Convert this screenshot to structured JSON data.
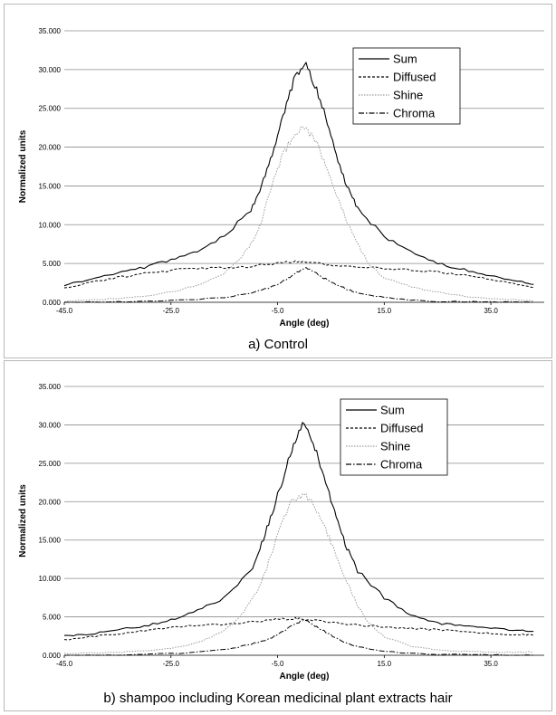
{
  "chart_data": [
    {
      "type": "line",
      "caption": "a) Control",
      "xlabel": "Angle (deg)",
      "ylabel": "Normalized units",
      "xlim": [
        -45,
        45
      ],
      "ylim": [
        0,
        35
      ],
      "x_ticks": [
        "-45.0",
        "-25.0",
        "-5.0",
        "15.0",
        "35.0"
      ],
      "y_ticks": [
        "0.000",
        "5.000",
        "10.000",
        "15.000",
        "20.000",
        "25.000",
        "30.000",
        "35.000"
      ],
      "grid": "horizontal",
      "legend_position": "top-right",
      "series": [
        {
          "name": "Sum",
          "style": "solid",
          "x": [
            -45,
            -40,
            -35,
            -30,
            -25,
            -20,
            -15,
            -10,
            -8,
            -6,
            -4,
            -2,
            0,
            2,
            4,
            6,
            8,
            10,
            15,
            20,
            25,
            30,
            35,
            40,
            43
          ],
          "y": [
            2.2,
            3.0,
            3.8,
            4.5,
            5.5,
            6.6,
            8.5,
            12.0,
            15.0,
            19.0,
            24.0,
            28.5,
            31.0,
            28.0,
            24.0,
            19.0,
            15.0,
            12.0,
            8.5,
            6.5,
            5.0,
            4.2,
            3.4,
            2.7,
            2.3
          ]
        },
        {
          "name": "Diffused",
          "style": "dashed",
          "x": [
            -45,
            -40,
            -35,
            -30,
            -25,
            -20,
            -15,
            -10,
            -6,
            -2,
            0,
            2,
            6,
            10,
            15,
            20,
            25,
            30,
            35,
            40,
            43
          ],
          "y": [
            1.8,
            2.6,
            3.2,
            3.7,
            4.1,
            4.4,
            4.5,
            4.6,
            5.0,
            5.3,
            5.2,
            5.0,
            4.7,
            4.5,
            4.4,
            4.2,
            3.9,
            3.5,
            3.0,
            2.3,
            1.9
          ]
        },
        {
          "name": "Shine",
          "style": "dotted",
          "x": [
            -45,
            -40,
            -35,
            -30,
            -25,
            -20,
            -15,
            -12,
            -10,
            -8,
            -6,
            -4,
            -2,
            0,
            2,
            4,
            6,
            8,
            10,
            12,
            15,
            20,
            25,
            30,
            35,
            40,
            43
          ],
          "y": [
            0.1,
            0.3,
            0.5,
            0.8,
            1.3,
            2.2,
            3.8,
            5.5,
            7.5,
            10.5,
            15.5,
            19.0,
            21.5,
            22.5,
            21.0,
            17.5,
            14.0,
            10.5,
            7.5,
            5.0,
            3.2,
            2.0,
            1.3,
            0.8,
            0.5,
            0.3,
            0.2
          ]
        },
        {
          "name": "Chroma",
          "style": "dashdot",
          "x": [
            -45,
            -35,
            -25,
            -15,
            -10,
            -6,
            -4,
            -2,
            0,
            2,
            4,
            6,
            8,
            10,
            15,
            20,
            25,
            35,
            43
          ],
          "y": [
            0.0,
            0.05,
            0.2,
            0.6,
            1.2,
            2.0,
            2.7,
            3.5,
            4.5,
            3.8,
            3.0,
            2.3,
            1.7,
            1.2,
            0.6,
            0.3,
            0.1,
            0.05,
            0.0
          ]
        }
      ]
    },
    {
      "type": "line",
      "caption": "b) shampoo including Korean medicinal plant extracts hair",
      "xlabel": "Angle (deg)",
      "ylabel": "Normalized units",
      "xlim": [
        -45,
        45
      ],
      "ylim": [
        0,
        35
      ],
      "x_ticks": [
        "-45.0",
        "-25.0",
        "-5.0",
        "15.0",
        "35.0"
      ],
      "y_ticks": [
        "0.000",
        "5.000",
        "10.000",
        "15.000",
        "20.000",
        "25.000",
        "30.000",
        "35.000"
      ],
      "grid": "horizontal",
      "legend_position": "top-right",
      "series": [
        {
          "name": "Sum",
          "style": "solid",
          "x": [
            -45,
            -40,
            -35,
            -30,
            -25,
            -20,
            -15,
            -10,
            -8,
            -6,
            -4,
            -2,
            0,
            2,
            4,
            6,
            8,
            10,
            15,
            20,
            25,
            30,
            35,
            40,
            43
          ],
          "y": [
            2.5,
            2.8,
            3.3,
            3.8,
            4.6,
            5.8,
            7.5,
            11.0,
            14.5,
            18.5,
            23.0,
            27.5,
            30.5,
            27.0,
            22.5,
            18.0,
            14.0,
            11.0,
            7.5,
            5.2,
            4.2,
            3.8,
            3.5,
            3.3,
            3.1
          ]
        },
        {
          "name": "Diffused",
          "style": "dashed",
          "x": [
            -45,
            -40,
            -35,
            -30,
            -25,
            -20,
            -15,
            -10,
            -6,
            -2,
            0,
            2,
            6,
            10,
            15,
            20,
            25,
            30,
            35,
            40,
            43
          ],
          "y": [
            2.0,
            2.4,
            2.8,
            3.2,
            3.6,
            3.9,
            4.1,
            4.3,
            4.6,
            4.8,
            4.7,
            4.5,
            4.2,
            3.9,
            3.7,
            3.5,
            3.3,
            3.1,
            2.9,
            2.7,
            2.6
          ]
        },
        {
          "name": "Shine",
          "style": "dotted",
          "x": [
            -45,
            -40,
            -35,
            -30,
            -25,
            -20,
            -15,
            -12,
            -10,
            -8,
            -6,
            -4,
            -2,
            0,
            2,
            4,
            6,
            8,
            10,
            12,
            15,
            20,
            25,
            30,
            35,
            40,
            43
          ],
          "y": [
            0.2,
            0.3,
            0.4,
            0.6,
            0.9,
            1.6,
            3.2,
            5.0,
            7.0,
            9.5,
            13.5,
            17.5,
            20.5,
            21.0,
            19.5,
            16.5,
            13.0,
            9.5,
            6.5,
            4.2,
            2.4,
            1.2,
            0.7,
            0.5,
            0.4,
            0.4,
            0.4
          ]
        },
        {
          "name": "Chroma",
          "style": "dashdot",
          "x": [
            -45,
            -35,
            -25,
            -15,
            -10,
            -6,
            -4,
            -2,
            0,
            2,
            4,
            6,
            8,
            10,
            15,
            20,
            25,
            35,
            43
          ],
          "y": [
            0.0,
            0.05,
            0.2,
            0.7,
            1.4,
            2.3,
            3.1,
            4.0,
            4.6,
            3.9,
            3.0,
            2.2,
            1.6,
            1.1,
            0.5,
            0.25,
            0.1,
            0.05,
            0.0
          ]
        }
      ]
    }
  ]
}
